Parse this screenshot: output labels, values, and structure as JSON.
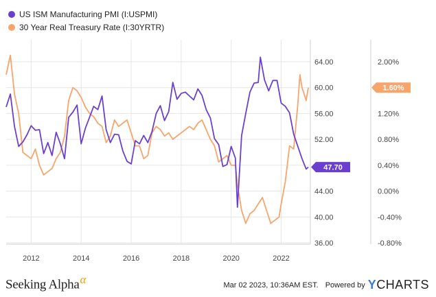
{
  "legend": {
    "series1": "US ISM Manufacturing PMI (I:USPMI)",
    "series2": "30 Year Real Treasury Rate (I:30YRTR)"
  },
  "footer": {
    "brand": "Seeking Alpha",
    "brand_mark": "α",
    "timestamp": "Mar 02 2023, 10:36AM EST.",
    "powered": "Powered by",
    "ycharts_y": "Y",
    "ycharts_rest": "CHARTS"
  },
  "colors": {
    "pmi": "#6a3fd0",
    "rate": "#f7a56b",
    "grid": "#e6e6e6"
  },
  "chart_data": {
    "type": "line",
    "x_ticks": [
      "2012",
      "2014",
      "2016",
      "2018",
      "2020",
      "2022"
    ],
    "xlim": [
      "2011-01",
      "2023-03"
    ],
    "left_axis": {
      "ticks": [
        "64.00",
        "60.00",
        "56.00",
        "52.00",
        "48.00",
        "44.00",
        "40.00",
        "36.00"
      ],
      "ylim": [
        36,
        64
      ]
    },
    "right_axis": {
      "ticks": [
        "2.00%",
        "1.60%",
        "1.20%",
        "0.80%",
        "0.40%",
        "0.00%",
        "-0.40%",
        "-0.80%"
      ],
      "ylim": [
        -0.8,
        2.0
      ]
    },
    "series": [
      {
        "name": "US ISM Manufacturing PMI (I:USPMI)",
        "axis": "left",
        "last_label": "47.70",
        "x": [
          "2011-01",
          "2011-03",
          "2011-05",
          "2011-07",
          "2011-09",
          "2011-11",
          "2012-01",
          "2012-03",
          "2012-05",
          "2012-07",
          "2012-09",
          "2012-11",
          "2013-01",
          "2013-03",
          "2013-05",
          "2013-07",
          "2013-09",
          "2013-11",
          "2014-01",
          "2014-03",
          "2014-05",
          "2014-07",
          "2014-09",
          "2014-11",
          "2015-01",
          "2015-03",
          "2015-05",
          "2015-07",
          "2015-09",
          "2015-11",
          "2016-01",
          "2016-03",
          "2016-05",
          "2016-07",
          "2016-09",
          "2016-11",
          "2017-01",
          "2017-03",
          "2017-05",
          "2017-07",
          "2017-09",
          "2017-11",
          "2018-01",
          "2018-03",
          "2018-05",
          "2018-07",
          "2018-09",
          "2018-11",
          "2019-01",
          "2019-03",
          "2019-05",
          "2019-07",
          "2019-09",
          "2019-11",
          "2020-01",
          "2020-03",
          "2020-04",
          "2020-06",
          "2020-08",
          "2020-10",
          "2020-12",
          "2021-02",
          "2021-03",
          "2021-05",
          "2021-07",
          "2021-09",
          "2021-11",
          "2022-01",
          "2022-03",
          "2022-05",
          "2022-07",
          "2022-09",
          "2022-11",
          "2023-01",
          "2023-02"
        ],
        "y": [
          57.0,
          59.0,
          54.0,
          50.9,
          51.6,
          52.7,
          54.1,
          53.4,
          53.5,
          49.8,
          51.5,
          49.5,
          53.1,
          51.3,
          49.0,
          55.4,
          56.2,
          57.3,
          51.3,
          53.7,
          55.4,
          57.1,
          56.6,
          58.7,
          53.5,
          51.5,
          52.8,
          52.7,
          50.2,
          48.6,
          48.2,
          51.8,
          51.3,
          52.6,
          51.5,
          53.2,
          56.0,
          57.2,
          54.9,
          56.3,
          60.8,
          58.2,
          59.1,
          59.3,
          58.7,
          58.1,
          59.8,
          58.8,
          56.6,
          55.3,
          52.1,
          51.2,
          47.8,
          48.1,
          50.9,
          49.1,
          41.5,
          52.6,
          56.0,
          59.3,
          60.7,
          60.8,
          64.7,
          61.2,
          59.5,
          61.1,
          61.1,
          57.6,
          57.1,
          56.1,
          52.8,
          50.9,
          49.0,
          47.4,
          47.7
        ]
      },
      {
        "name": "30 Year Real Treasury Rate (I:30YRTR)",
        "axis": "right",
        "last_label": "1.60%",
        "x": [
          "2011-01",
          "2011-03",
          "2011-05",
          "2011-07",
          "2011-09",
          "2011-11",
          "2012-01",
          "2012-03",
          "2012-05",
          "2012-07",
          "2012-09",
          "2012-11",
          "2013-01",
          "2013-03",
          "2013-05",
          "2013-07",
          "2013-09",
          "2013-11",
          "2014-01",
          "2014-03",
          "2014-05",
          "2014-07",
          "2014-09",
          "2014-11",
          "2015-01",
          "2015-03",
          "2015-05",
          "2015-07",
          "2015-09",
          "2015-11",
          "2016-01",
          "2016-03",
          "2016-05",
          "2016-07",
          "2016-09",
          "2016-11",
          "2017-01",
          "2017-03",
          "2017-05",
          "2017-07",
          "2017-09",
          "2017-11",
          "2018-01",
          "2018-03",
          "2018-05",
          "2018-07",
          "2018-09",
          "2018-11",
          "2019-01",
          "2019-03",
          "2019-05",
          "2019-07",
          "2019-09",
          "2019-11",
          "2020-01",
          "2020-03",
          "2020-04",
          "2020-06",
          "2020-08",
          "2020-10",
          "2020-12",
          "2021-02",
          "2021-04",
          "2021-06",
          "2021-08",
          "2021-10",
          "2021-12",
          "2022-01",
          "2022-03",
          "2022-05",
          "2022-07",
          "2022-09",
          "2022-10",
          "2022-11",
          "2023-01",
          "2023-02"
        ],
        "y": [
          1.8,
          2.1,
          1.5,
          1.2,
          0.6,
          0.55,
          0.5,
          0.65,
          0.4,
          0.25,
          0.3,
          0.35,
          0.5,
          0.6,
          0.85,
          1.4,
          1.6,
          1.55,
          1.45,
          1.3,
          1.2,
          1.15,
          1.05,
          1.0,
          0.75,
          0.85,
          1.1,
          1.0,
          1.05,
          1.1,
          0.9,
          0.7,
          0.7,
          0.5,
          0.55,
          0.9,
          1.0,
          0.95,
          0.85,
          0.9,
          0.8,
          0.85,
          0.9,
          0.95,
          1.0,
          0.95,
          1.05,
          1.1,
          0.95,
          0.8,
          0.7,
          0.45,
          0.5,
          0.55,
          0.4,
          0.4,
          0.1,
          -0.3,
          -0.5,
          -0.35,
          -0.3,
          -0.2,
          -0.1,
          -0.3,
          -0.5,
          -0.45,
          -0.4,
          -0.2,
          0.15,
          0.7,
          0.65,
          1.35,
          1.8,
          1.6,
          1.4,
          1.6
        ]
      }
    ]
  }
}
